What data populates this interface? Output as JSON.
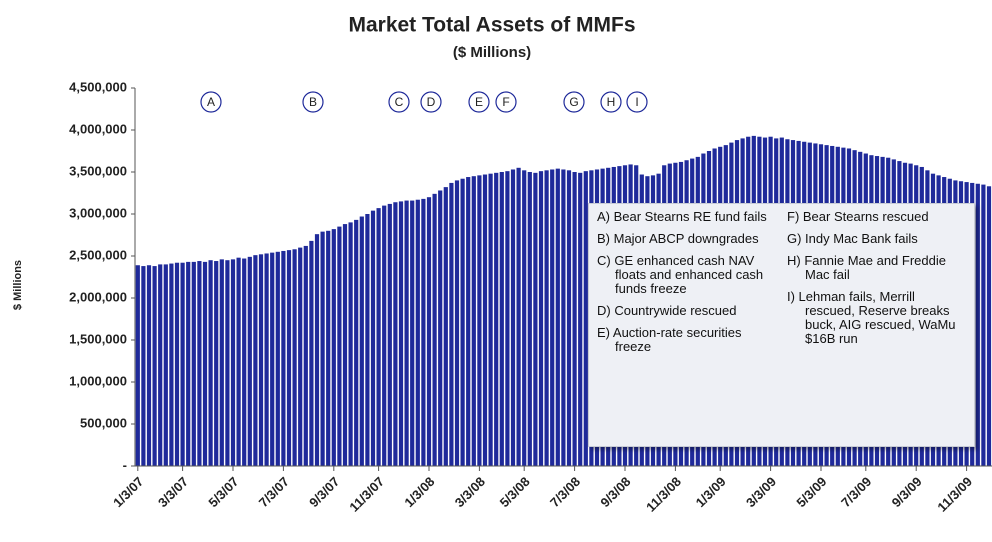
{
  "chart_data": {
    "type": "bar",
    "title": "Market Total Assets of MMFs",
    "subtitle": "($ Millions)",
    "y_label": "$ Millions",
    "color": "#1f2a9a",
    "categories": [
      "1/3/07",
      null,
      null,
      null,
      null,
      null,
      null,
      null,
      "3/3/07",
      null,
      null,
      null,
      null,
      null,
      null,
      null,
      null,
      "5/3/07",
      null,
      null,
      null,
      null,
      null,
      null,
      null,
      null,
      "7/3/07",
      null,
      null,
      null,
      null,
      null,
      null,
      null,
      null,
      "9/3/07",
      null,
      null,
      null,
      null,
      null,
      null,
      null,
      "11/3/07",
      null,
      null,
      null,
      null,
      null,
      null,
      null,
      null,
      "1/3/08",
      null,
      null,
      null,
      null,
      null,
      null,
      null,
      null,
      "3/3/08",
      null,
      null,
      null,
      null,
      null,
      null,
      null,
      "5/3/08",
      null,
      null,
      null,
      null,
      null,
      null,
      null,
      null,
      "7/3/08",
      null,
      null,
      null,
      null,
      null,
      null,
      null,
      null,
      "9/3/08",
      null,
      null,
      null,
      null,
      null,
      null,
      null,
      null,
      "11/3/08",
      null,
      null,
      null,
      null,
      null,
      null,
      null,
      "1/3/09",
      null,
      null,
      null,
      null,
      null,
      null,
      null,
      null,
      "3/3/09",
      null,
      null,
      null,
      null,
      null,
      null,
      null,
      null,
      "5/3/09",
      null,
      null,
      null,
      null,
      null,
      null,
      null,
      "7/3/09",
      null,
      null,
      null,
      null,
      null,
      null,
      null,
      null,
      "9/3/09",
      null,
      null,
      null,
      null,
      null,
      null,
      null,
      null,
      "11/3/09",
      null,
      null,
      null,
      null
    ],
    "values": [
      2390000,
      2380000,
      2390000,
      2380000,
      2400000,
      2400000,
      2410000,
      2420000,
      2420000,
      2430000,
      2430000,
      2440000,
      2430000,
      2450000,
      2440000,
      2460000,
      2450000,
      2460000,
      2480000,
      2470000,
      2490000,
      2510000,
      2520000,
      2530000,
      2540000,
      2550000,
      2560000,
      2570000,
      2580000,
      2600000,
      2620000,
      2680000,
      2760000,
      2790000,
      2800000,
      2820000,
      2850000,
      2880000,
      2900000,
      2930000,
      2970000,
      3000000,
      3040000,
      3070000,
      3100000,
      3120000,
      3140000,
      3150000,
      3160000,
      3160000,
      3170000,
      3180000,
      3200000,
      3240000,
      3280000,
      3320000,
      3370000,
      3400000,
      3420000,
      3440000,
      3450000,
      3460000,
      3470000,
      3480000,
      3490000,
      3500000,
      3510000,
      3530000,
      3550000,
      3520000,
      3500000,
      3490000,
      3510000,
      3520000,
      3530000,
      3540000,
      3530000,
      3520000,
      3500000,
      3490000,
      3510000,
      3520000,
      3530000,
      3540000,
      3550000,
      3560000,
      3570000,
      3580000,
      3590000,
      3580000,
      3470000,
      3450000,
      3460000,
      3480000,
      3580000,
      3600000,
      3610000,
      3620000,
      3640000,
      3660000,
      3680000,
      3720000,
      3750000,
      3780000,
      3800000,
      3820000,
      3850000,
      3880000,
      3900000,
      3920000,
      3930000,
      3920000,
      3910000,
      3920000,
      3900000,
      3910000,
      3890000,
      3880000,
      3870000,
      3860000,
      3850000,
      3840000,
      3830000,
      3820000,
      3810000,
      3800000,
      3790000,
      3780000,
      3760000,
      3740000,
      3720000,
      3700000,
      3690000,
      3680000,
      3670000,
      3650000,
      3630000,
      3610000,
      3600000,
      3580000,
      3560000,
      3520000,
      3480000,
      3460000,
      3440000,
      3420000,
      3400000,
      3390000,
      3380000,
      3370000,
      3360000,
      3350000,
      3330000
    ],
    "ylim": [
      0,
      4500000
    ],
    "yticks": [
      {
        "value": 0,
        "label": "-"
      },
      {
        "value": 500000,
        "label": "500,000"
      },
      {
        "value": 1000000,
        "label": "1,000,000"
      },
      {
        "value": 1500000,
        "label": "1,500,000"
      },
      {
        "value": 2000000,
        "label": "2,000,000"
      },
      {
        "value": 2500000,
        "label": "2,500,000"
      },
      {
        "value": 3000000,
        "label": "3,000,000"
      },
      {
        "value": 3500000,
        "label": "3,500,000"
      },
      {
        "value": 4000000,
        "label": "4,000,000"
      },
      {
        "value": 4500000,
        "label": "4,500,000"
      }
    ],
    "event_markers": [
      "A",
      "B",
      "C",
      "D",
      "E",
      "F",
      "G",
      "H",
      "I"
    ],
    "notes_left": [
      "A) Bear Stearns RE fund fails",
      "B) Major ABCP downgrades",
      "C) GE enhanced cash NAV floats and enhanced cash funds freeze",
      "D) Countrywide rescued",
      "E) Auction-rate securities freeze"
    ],
    "notes_right": [
      "F) Bear Stearns rescued",
      "G) Indy Mac Bank fails",
      "H) Fannie Mae and Freddie Mac fail",
      "I) Lehman fails, Merrill rescued, Reserve breaks buck, AIG rescued, WaMu $16B run"
    ]
  }
}
